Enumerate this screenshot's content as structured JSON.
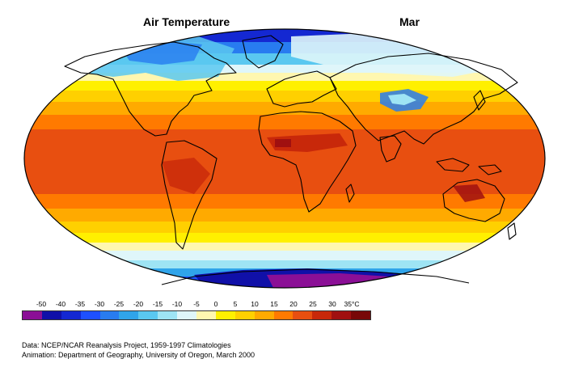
{
  "title": "Air Temperature",
  "month": "Mar",
  "legend": {
    "labels": [
      "-50",
      "-40",
      "-35",
      "-30",
      "-25",
      "-20",
      "-15",
      "-10",
      "-5",
      "0",
      "5",
      "10",
      "15",
      "20",
      "25",
      "30",
      "35°C"
    ],
    "colors": [
      "#8b0f96",
      "#1010a8",
      "#1428d2",
      "#1e50ff",
      "#287cf0",
      "#30a4ea",
      "#5ac8f0",
      "#9ee4f4",
      "#dff6fa",
      "#fff7b0",
      "#fff000",
      "#ffd000",
      "#ffaa00",
      "#ff7a00",
      "#e84f10",
      "#c8280a",
      "#a01010",
      "#780808"
    ]
  },
  "credits": {
    "line1": "Data:  NCEP/NCAR Reanalysis Project, 1959-1997 Climatologies",
    "line2": "Animation:  Department of Geography, University of Oregon, March 2000"
  }
}
